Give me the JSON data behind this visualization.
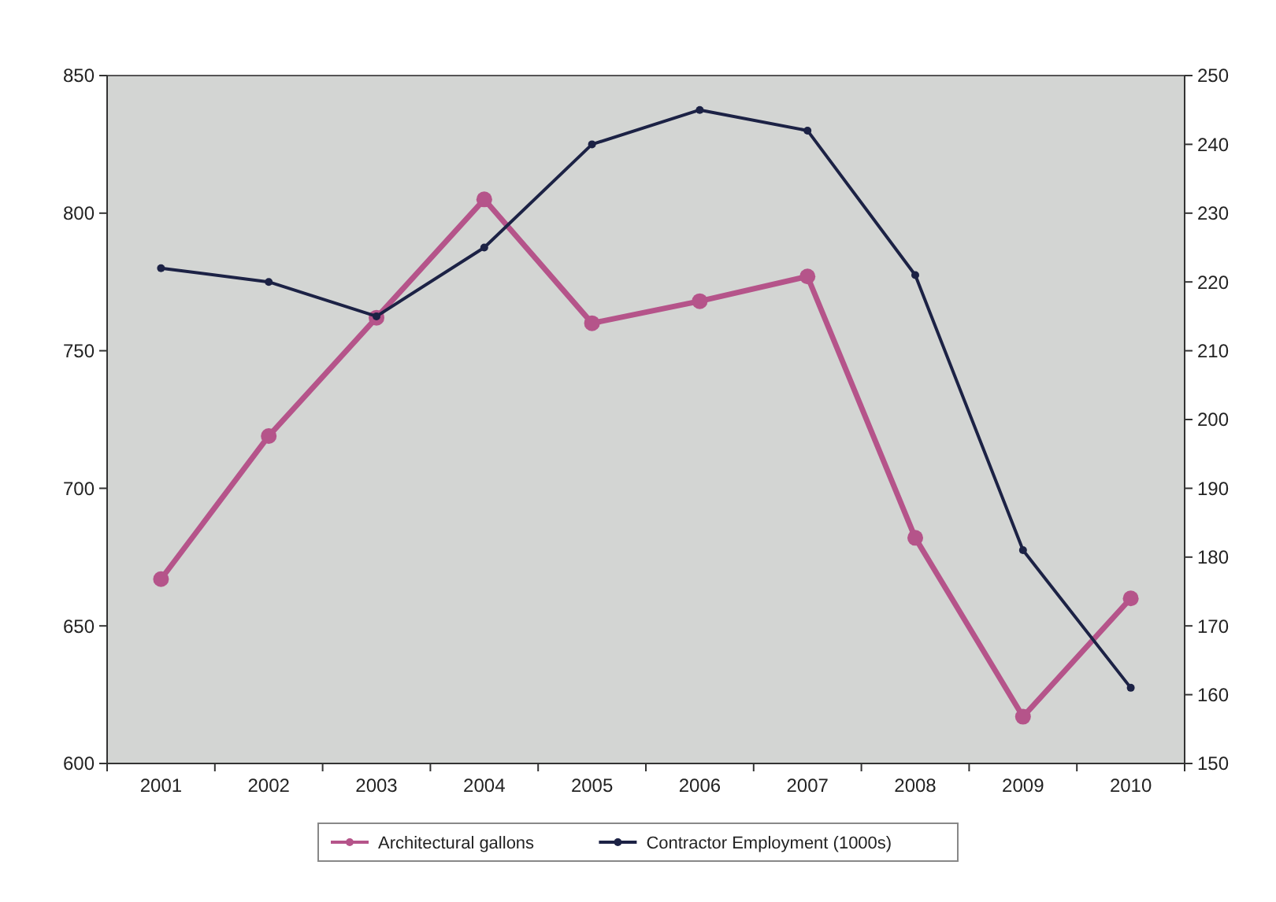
{
  "chart_data": {
    "type": "line",
    "categories": [
      "2001",
      "2002",
      "2003",
      "2004",
      "2005",
      "2006",
      "2007",
      "2008",
      "2009",
      "2010"
    ],
    "series": [
      {
        "name": "Architectural gallons",
        "color": "#b5548a",
        "values": [
          667,
          719,
          762,
          805,
          760,
          768,
          777,
          682,
          617,
          660
        ]
      },
      {
        "name": "Contractor Employment (1000s)",
        "color": "#1c2245",
        "axis": "y2",
        "values": [
          222,
          220,
          215,
          225,
          240,
          245,
          242,
          221,
          181,
          161
        ]
      }
    ],
    "ylim": [
      600,
      850
    ],
    "yticks": [
      600,
      650,
      700,
      750,
      800,
      850
    ],
    "y2lim": [
      150,
      250
    ],
    "y2ticks": [
      150,
      160,
      170,
      180,
      190,
      200,
      210,
      220,
      230,
      240,
      250
    ],
    "grid": false,
    "legend": "bottom",
    "marker": "circle",
    "line_style": "solid"
  }
}
